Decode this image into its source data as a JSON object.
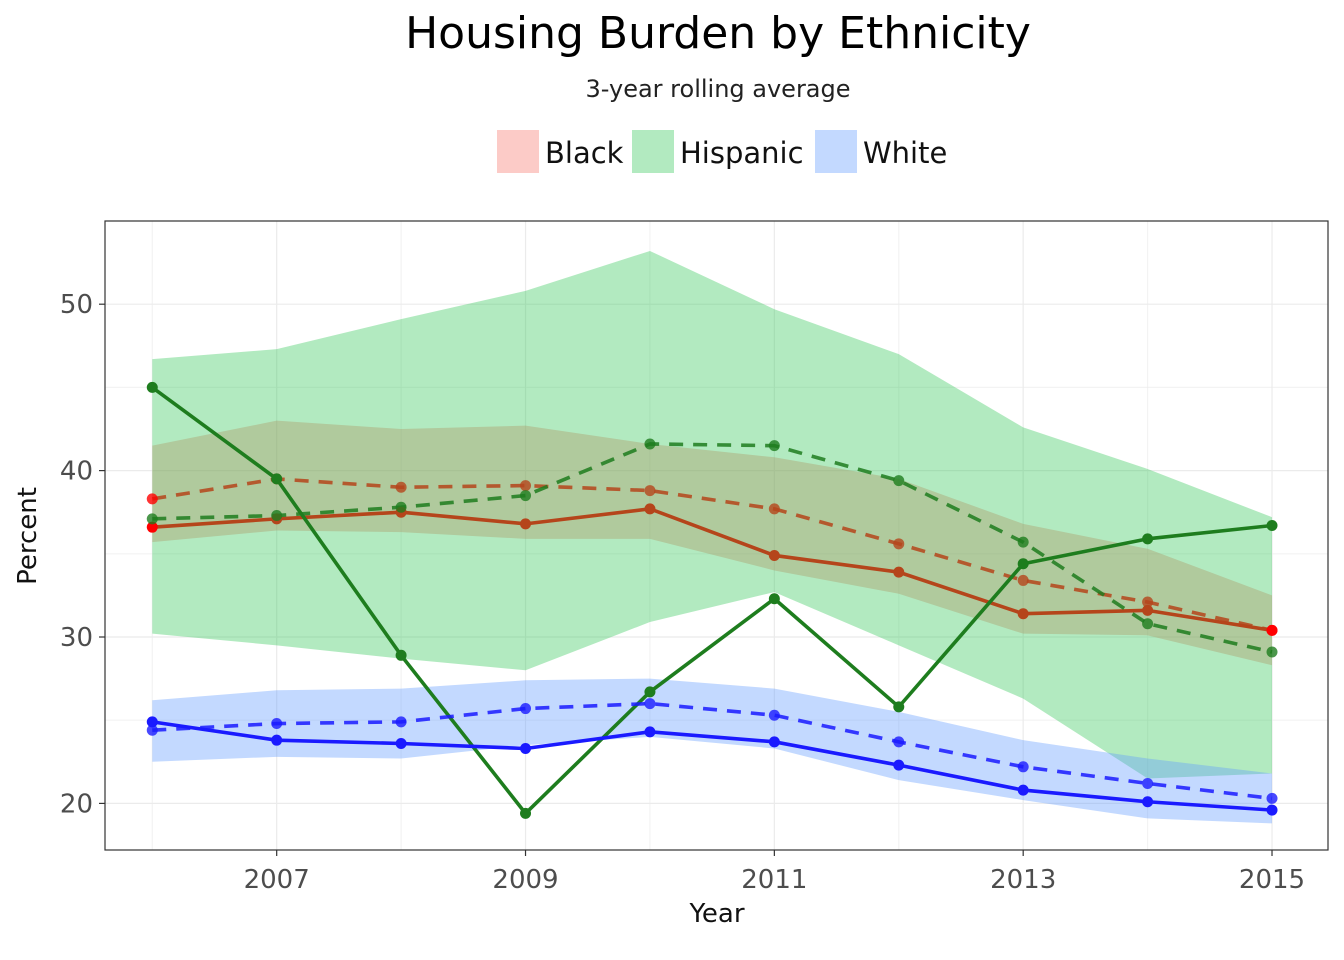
{
  "chart_data": {
    "type": "line",
    "title": "Housing Burden by Ethnicity",
    "subtitle": "3-year rolling average",
    "xlabel": "Year",
    "ylabel": "Percent",
    "xlim": [
      2005.62,
      2015.45
    ],
    "ylim": [
      17.2,
      55.0
    ],
    "x_ticks": [
      2007,
      2009,
      2011,
      2013,
      2015
    ],
    "y_ticks": [
      20,
      30,
      40,
      50
    ],
    "grid": true,
    "legend": {
      "placement": "top",
      "entries": [
        "Black",
        "Hispanic",
        "White"
      ]
    },
    "x": [
      2006,
      2007,
      2008,
      2009,
      2010,
      2011,
      2012,
      2013,
      2014,
      2015
    ],
    "series": [
      {
        "name": "Black",
        "fill_color": "#f8766d",
        "line_color": "#b5451b",
        "point_color": "#b5451b",
        "end_point_color": "#ff0000",
        "annual": [
          36.6,
          37.1,
          37.5,
          36.8,
          37.7,
          34.9,
          33.9,
          31.4,
          31.6,
          30.4
        ],
        "rolling": [
          38.3,
          39.5,
          39.0,
          39.1,
          38.8,
          37.7,
          35.6,
          33.4,
          32.1,
          30.4
        ],
        "band_lower": [
          35.7,
          36.4,
          36.3,
          35.9,
          35.9,
          34.0,
          32.6,
          30.2,
          30.1,
          28.3
        ],
        "band_upper": [
          41.5,
          43.0,
          42.5,
          42.7,
          41.6,
          40.8,
          39.5,
          36.8,
          35.3,
          32.5
        ]
      },
      {
        "name": "Hispanic",
        "fill_color": "#34c759",
        "line_color": "#1e7d1e",
        "point_color": "#1e7d1e",
        "end_point_color": "#1e7d1e",
        "annual": [
          45.0,
          39.5,
          28.9,
          19.4,
          26.7,
          32.3,
          25.8,
          34.4,
          35.9,
          36.7
        ],
        "rolling": [
          37.1,
          37.3,
          37.8,
          38.5,
          41.6,
          41.5,
          39.4,
          35.7,
          30.8,
          29.1
        ],
        "band_lower": [
          30.2,
          29.5,
          28.7,
          28.0,
          30.9,
          32.7,
          29.5,
          26.3,
          21.5,
          21.8
        ],
        "band_upper": [
          46.7,
          47.3,
          49.1,
          50.8,
          53.2,
          49.7,
          47.0,
          42.6,
          40.1,
          37.2
        ]
      },
      {
        "name": "White",
        "fill_color": "#619cff",
        "line_color": "#1a1aff",
        "point_color": "#1a1aff",
        "end_point_color": "#1a1aff",
        "annual": [
          24.9,
          23.8,
          23.6,
          23.3,
          24.3,
          23.7,
          22.3,
          20.8,
          20.1,
          19.6
        ],
        "rolling": [
          24.4,
          24.8,
          24.9,
          25.7,
          26.0,
          25.3,
          23.7,
          22.2,
          21.2,
          20.3
        ],
        "band_lower": [
          22.5,
          22.8,
          22.7,
          23.5,
          24.0,
          23.3,
          21.4,
          20.2,
          19.1,
          18.8
        ],
        "band_upper": [
          26.2,
          26.8,
          26.9,
          27.4,
          27.5,
          26.9,
          25.5,
          23.8,
          22.7,
          21.8
        ]
      }
    ]
  }
}
